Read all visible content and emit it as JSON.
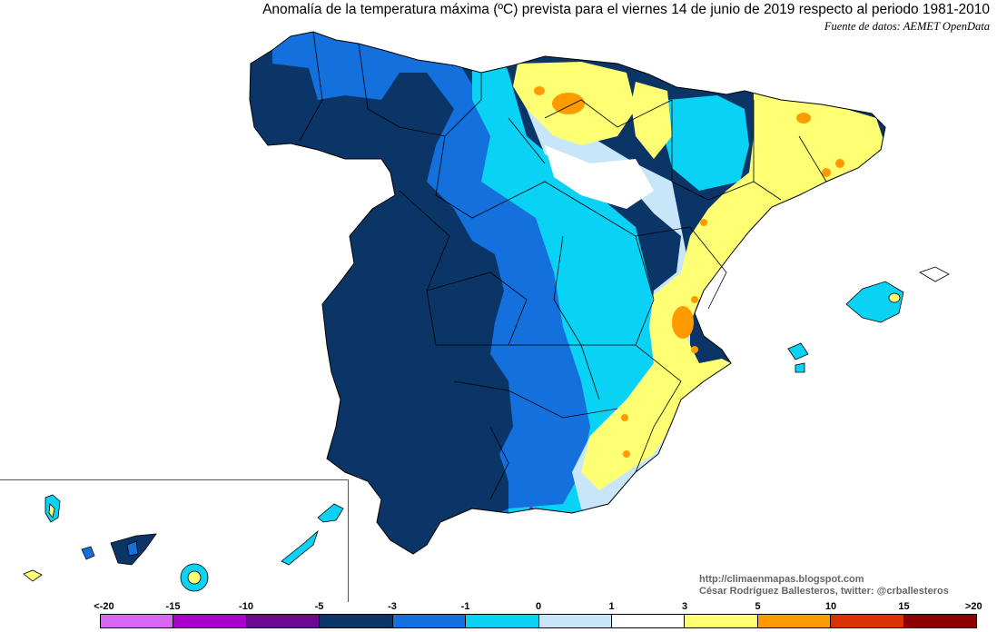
{
  "header": {
    "title": "Anomalía de la temperatura máxima (ºC) prevista para el viernes 14 de junio de 2019 respecto al periodo 1981-2010",
    "source": "Fuente de datos: AEMET OpenData"
  },
  "credit": {
    "line1": "http://climaenmapas.blogspot.com",
    "line2": "César Rodríguez Ballesteros, twitter: @crballesteros"
  },
  "legend": {
    "ticks": [
      "<-20",
      "-15",
      "-10",
      "-5",
      "-3",
      "-1",
      "0",
      "1",
      "3",
      "5",
      "10",
      "15",
      ">20"
    ],
    "colors": [
      "#d966f2",
      "#aa00cc",
      "#6a0a8c",
      "#0b3566",
      "#1470dc",
      "#0ad2f5",
      "#c8e6fa",
      "#ffffff",
      "#ffff73",
      "#ff9a00",
      "#dc3200",
      "#8c0000",
      "#5a3200"
    ]
  }
}
